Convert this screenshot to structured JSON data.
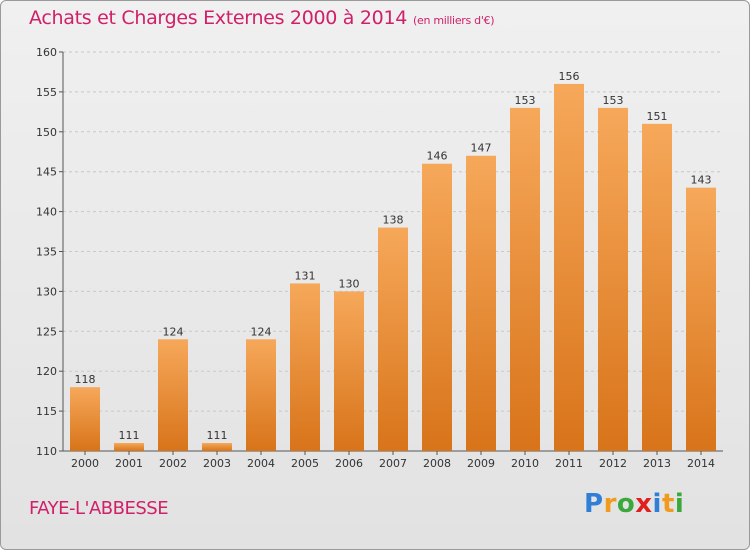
{
  "title": "Achats et Charges Externes 2000 à 2014",
  "subtitle": "(en milliers d'€)",
  "commune": "FAYE-L'ABBESSE",
  "logo": {
    "letters": [
      "P",
      "r",
      "o",
      "x",
      "i",
      "t",
      "i"
    ],
    "colors": [
      "#2f7fd6",
      "#f29a1d",
      "#3aa83a",
      "#e02020",
      "#2f7fd6",
      "#f29a1d",
      "#3aa83a"
    ]
  },
  "colors": {
    "bar": "#f08a2a",
    "bar_light": "#f6a85a",
    "bar_dark": "#d8741a",
    "title": "#d0206a"
  },
  "chart_data": {
    "type": "bar",
    "title": "Achats et Charges Externes 2000 à 2014",
    "subtitle": "(en milliers d'€)",
    "categories": [
      "2000",
      "2001",
      "2002",
      "2003",
      "2004",
      "2005",
      "2006",
      "2007",
      "2008",
      "2009",
      "2010",
      "2011",
      "2012",
      "2013",
      "2014"
    ],
    "values": [
      118,
      111,
      124,
      111,
      124,
      131,
      130,
      138,
      146,
      147,
      153,
      156,
      153,
      151,
      143
    ],
    "ylim": [
      110,
      160
    ],
    "yticks": [
      110,
      115,
      120,
      125,
      130,
      135,
      140,
      145,
      150,
      155,
      160
    ],
    "xlabel": "",
    "ylabel": "",
    "grid": true
  }
}
